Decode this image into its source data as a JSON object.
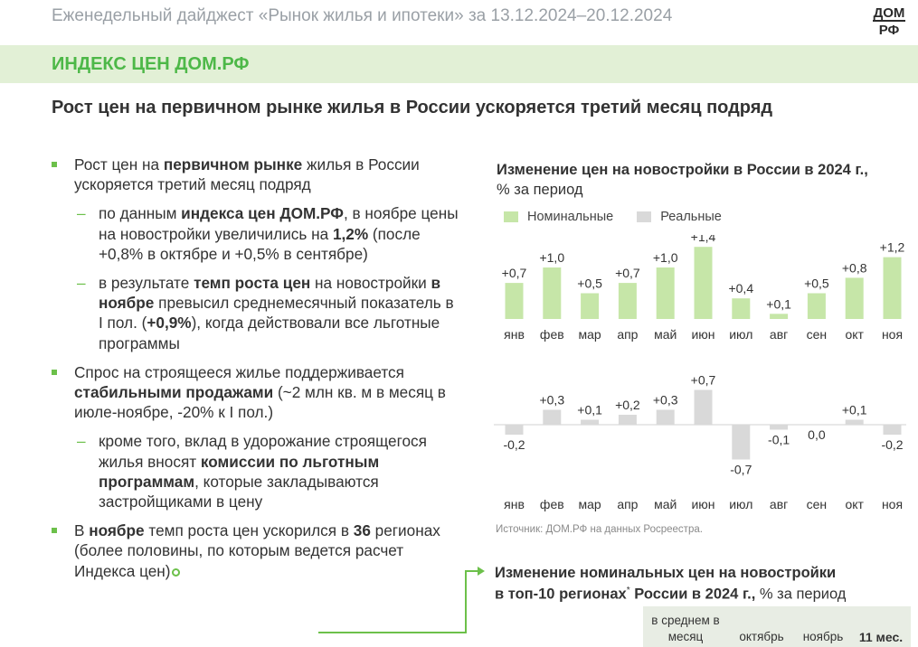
{
  "header": {
    "title": "Еженедельный дайджест «Рынок жилья и ипотеки» за 13.12.2024–20.12.2024",
    "logo_top": "ДОМ",
    "logo_bottom": "РФ"
  },
  "section": {
    "band_title": "ИНДЕКС ЦЕН ДОМ.РФ",
    "subtitle": "Рост цен на первичном рынке жилья в России ускоряется третий месяц подряд"
  },
  "bullets": {
    "b1": {
      "t1": "Рост цен на ",
      "b1": "первичном рынке",
      "t2": " жилья в России ускоряется третий месяц подряд"
    },
    "b1_1": {
      "t1": "по данным ",
      "b1": "индекса цен ДОМ.РФ",
      "t2": ", в ноябре цены на новостройки увеличились на ",
      "b2": "1,2%",
      "t3": " (после +0,8% в октябре и +0,5% в сентябре)"
    },
    "b1_2": {
      "t1": "в результате ",
      "b1": "темп роста цен",
      "t2": " на новостройки ",
      "b2": "в ноябре",
      "t3": " превысил среднемесячный показатель в I пол. (",
      "b3": "+0,9%",
      "t4": "), когда действовали все льготные программы"
    },
    "b2": {
      "t1": "Спрос на строящееся жилье поддерживается ",
      "b1": "стабильными продажами",
      "t2": " (~2 млн кв. м в месяц в июле-ноябре, -20% к I пол.)"
    },
    "b2_1": {
      "t1": "кроме того, вклад в удорожание строящегося жилья вносят ",
      "b1": "комиссии по льготным программам",
      "t2": ", которые закладываются застройщиками в цену"
    },
    "b3": {
      "t1": "В ",
      "b1": "ноябре",
      "t2": " темп роста цен ускорился в ",
      "b2": "36",
      "t3": " регионах (более половины, по которым ведется расчет Индекса цен)"
    },
    "dash": "–"
  },
  "chart_title": {
    "bold": "Изменение цен на новостройки в России в 2024 г.,",
    "normal": "% за период"
  },
  "legend": {
    "nominal": "Номинальные",
    "real": "Реальные"
  },
  "colors": {
    "nominal": "#c6e6a8",
    "real": "#d9d9d9",
    "accent": "#4db848",
    "band": "#e2f0d6"
  },
  "chart_data": [
    {
      "type": "bar",
      "name": "Номинальные",
      "categories": [
        "янв",
        "фев",
        "мар",
        "апр",
        "май",
        "июн",
        "июл",
        "авг",
        "сен",
        "окт",
        "ноя"
      ],
      "values": [
        0.7,
        1.0,
        0.5,
        0.7,
        1.0,
        1.4,
        0.4,
        0.1,
        0.5,
        0.8,
        1.2
      ],
      "labels": [
        "+0,7",
        "+1,0",
        "+0,5",
        "+0,7",
        "+1,0",
        "+1,4",
        "+0,4",
        "+0,1",
        "+0,5",
        "+0,8",
        "+1,2"
      ],
      "title": "Изменение цен на новостройки в России в 2024 г., % за период"
    },
    {
      "type": "bar",
      "name": "Реальные",
      "categories": [
        "янв",
        "фев",
        "мар",
        "апр",
        "май",
        "июн",
        "июл",
        "авг",
        "сен",
        "окт",
        "ноя"
      ],
      "values": [
        -0.2,
        0.3,
        0.1,
        0.2,
        0.3,
        0.7,
        -0.7,
        -0.1,
        0.0,
        0.1,
        -0.2
      ],
      "labels": [
        "-0,2",
        "+0,3",
        "+0,1",
        "+0,2",
        "+0,3",
        "+0,7",
        "-0,7",
        "-0,1",
        "0,0",
        "+0,1",
        "-0,2"
      ]
    }
  ],
  "source": "Источник: ДОМ.РФ на данных Росреестра.",
  "section2": {
    "title_bold_1": "Изменение номинальных цен на новостройки",
    "title_bold_2": "в топ-10 регионах",
    "title_sup": "*",
    "title_bold_3": " России в 2024 г.,",
    "title_normal": " % за период",
    "table_headers": {
      "avg_line1": "в среднем в",
      "avg_line2": "месяц",
      "october": "октябрь",
      "november": "ноябрь",
      "eleven_months": "11 мес."
    }
  }
}
